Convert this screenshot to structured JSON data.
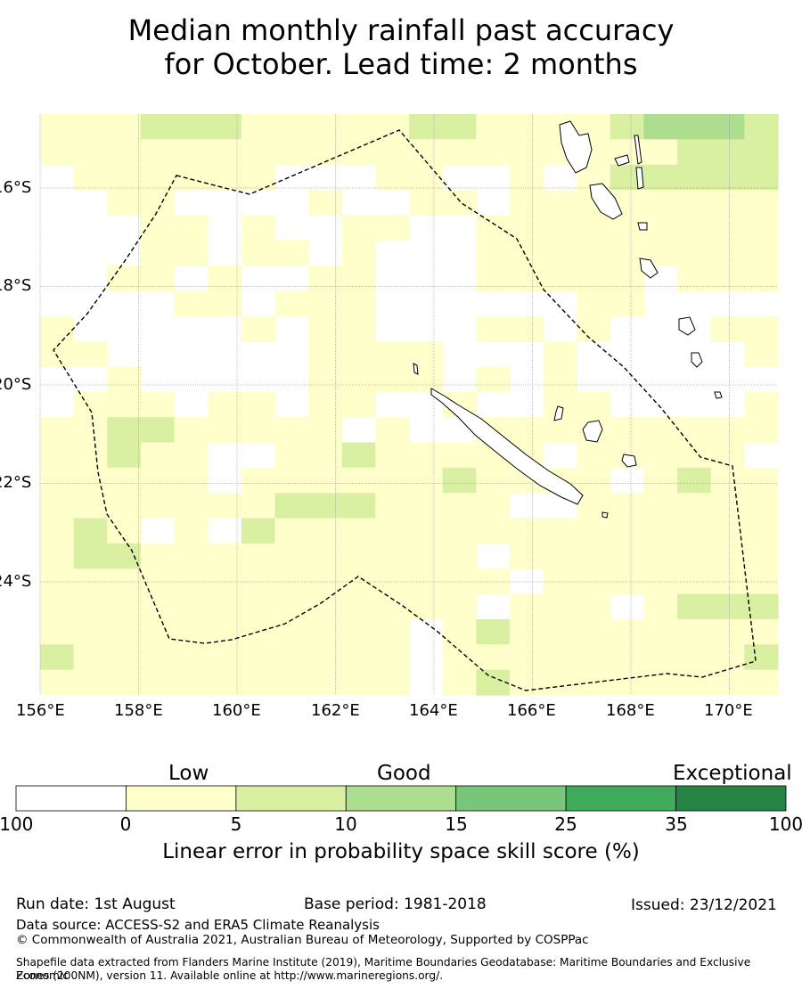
{
  "title": {
    "line1": "Median monthly rainfall past accuracy",
    "line2": "for October. Lead time: 2 months"
  },
  "map": {
    "lon_ticks": [
      "156°E",
      "158°E",
      "160°E",
      "162°E",
      "164°E",
      "166°E",
      "168°E",
      "170°E"
    ],
    "lat_ticks": [
      "16°S",
      "18°S",
      "20°S",
      "22°S",
      "24°S"
    ],
    "grid": [
      "1112221111122111123332",
      "1111111111111111111222",
      "0111111000110010122222",
      "0011000010011011111111",
      "0001101001100111111111",
      "0001101101000111111111",
      "0011010011000111110111",
      "0000110111000000110000",
      "1000001011000110100011",
      "1100000011110001000001",
      "0010000011110101000000",
      "0111011011001001100001",
      "1122111110100111111111",
      "1121100112111110111110",
      "1111101111112111101211",
      "1111111222111100111111",
      "1210102111111111111111",
      "1221111111111011111111",
      "1111111111111101111111",
      "1111111111111011101222",
      "1111111111101211111111",
      "2111111111101111111112",
      "1111111111101211111111"
    ]
  },
  "colorbar": {
    "categories": [
      "Low",
      "Good",
      "Exceptional"
    ],
    "ticks": [
      "-100",
      "0",
      "5",
      "10",
      "15",
      "25",
      "35",
      "100"
    ],
    "colors": [
      "#ffffff",
      "#ffffcc",
      "#d9f0a3",
      "#addd8e",
      "#78c679",
      "#41ab5d",
      "#238443"
    ],
    "label": "Linear error in probability space skill score (%)"
  },
  "footer": {
    "run_date": "Run date: 1st August",
    "base_period": "Base period: 1981-2018",
    "issued": "Issued: 23/12/2021",
    "data_source": "Data source: ACCESS-S2 and ERA5 Climate Reanalysis",
    "copyright": "© Commonwealth of Australia 2021, Australian Bureau of Meteorology, Supported by COSPPac",
    "shapefile_line1": "Shapefile data extracted from Flanders Marine Institute (2019), Maritime Boundaries Geodatabase: Maritime Boundaries and Exclusive Economic",
    "shapefile_line2": "Zones (200NM), version 11. Available online at http://www.marineregions.org/."
  }
}
